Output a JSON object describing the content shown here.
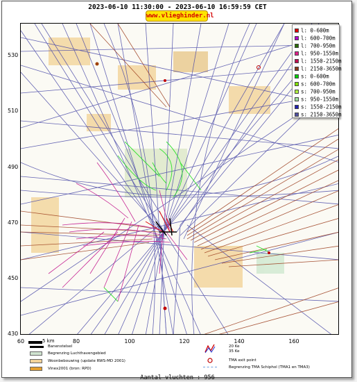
{
  "header": {
    "title": "2023-06-10 11:30:00 - 2023-06-10 16:59:59 CET",
    "brand": "www.vlieghinder.nl"
  },
  "map": {
    "y_ticks": [
      "530",
      "510",
      "490",
      "470",
      "450",
      "430"
    ],
    "x_ticks": [
      "60",
      "80",
      "100",
      "120",
      "140",
      "160"
    ]
  },
  "legend": {
    "items": [
      {
        "label": "l: 0-600m",
        "color": "#e00000"
      },
      {
        "label": "l: 600-700m",
        "color": "#b000d0"
      },
      {
        "label": "l: 700-950m",
        "color": "#2a6a00"
      },
      {
        "label": "l: 950-1550m",
        "color": "#e0208a"
      },
      {
        "label": "l: 1550-2150m",
        "color": "#c01050"
      },
      {
        "label": "l: 2150-3650m",
        "color": "#8a3a1a"
      },
      {
        "label": "s: 0-600m",
        "color": "#00d000"
      },
      {
        "label": "s: 600-700m",
        "color": "#80e000"
      },
      {
        "label": "s: 700-950m",
        "color": "#b0f040"
      },
      {
        "label": "s: 950-1550m",
        "color": "#a0e0a0"
      },
      {
        "label": "s: 1550-2150m",
        "color": "#2020b0"
      },
      {
        "label": "s: 2150-3650m",
        "color": "#5050a0"
      }
    ]
  },
  "scale_label": "5 km",
  "bottom_legend": {
    "runway": "Banenstelsel",
    "airport_area": "Begrenzing Luchthavengebied",
    "housing": "Woonbebouwing (update RWS-MD 2001)",
    "vinex": "Vinex2001 (bron: RPD)",
    "noise_20": "20 Ke",
    "noise_35": "35 Ke",
    "tma_exit": "TMA exit point",
    "tma_boundary": "Begrenzing TMA Schiphol  (TMA1 en TMA3)"
  },
  "footer": {
    "count_text": "Aantal vluchten : 956"
  },
  "colors": {
    "badge": "#ffe400",
    "track_blue": "#4a4aa8",
    "track_brown": "#8a3a1a",
    "track_magenta": "#c0108a",
    "track_green": "#20e020"
  }
}
